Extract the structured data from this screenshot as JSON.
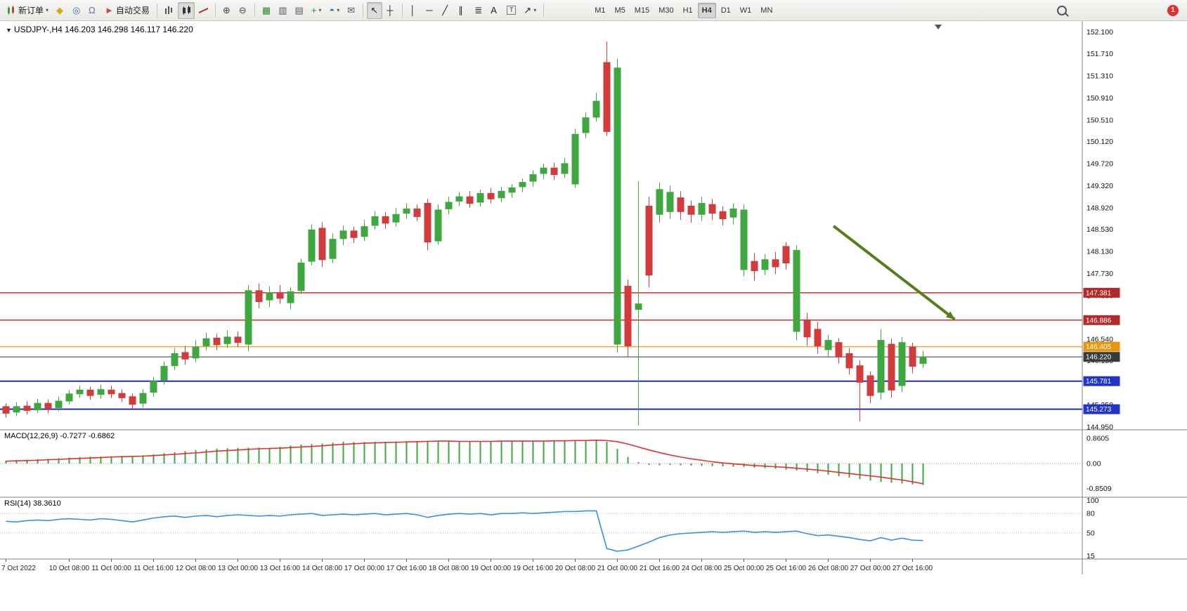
{
  "toolbar": {
    "notification_count": "1",
    "items": [
      {
        "name": "new-order-button",
        "icon": "candles",
        "label": "新订单",
        "caret": true
      },
      {
        "name": "metaeditor-button",
        "glyph": "◆",
        "color": "#D9A714"
      },
      {
        "name": "market-watch-button",
        "glyph": "◎",
        "color": "#3A6EA5"
      },
      {
        "name": "alerts-button",
        "glyph": "Ω",
        "color": "#5577AA"
      },
      {
        "name": "autotrading-button",
        "glyph": "►",
        "color": "#C84B4B",
        "label": "自动交易"
      },
      {
        "type": "sep"
      },
      {
        "name": "bar-chart-button",
        "icon": "bars"
      },
      {
        "name": "candle-chart-button",
        "icon": "candles2",
        "active": true
      },
      {
        "name": "line-chart-button",
        "icon": "linechart"
      },
      {
        "type": "sep"
      },
      {
        "name": "zoom-in-button",
        "glyph": "⊕",
        "color": "#444"
      },
      {
        "name": "zoom-out-button",
        "glyph": "⊖",
        "color": "#444"
      },
      {
        "type": "sep"
      },
      {
        "name": "tile-windows-button",
        "glyph": "▦",
        "color": "#2E8B2E"
      },
      {
        "name": "arrange-windows-button",
        "glyph": "▥",
        "color": "#556"
      },
      {
        "name": "cascade-windows-button",
        "glyph": "▤",
        "color": "#556"
      },
      {
        "name": "new-chart-button",
        "glyph": "+",
        "color": "#2E8B2E",
        "caret": true
      },
      {
        "name": "profiles-button",
        "glyph": "◓",
        "color": "#3A6EA5",
        "caret": true
      },
      {
        "name": "data-window-button",
        "glyph": "✉",
        "color": "#556"
      },
      {
        "type": "sep"
      },
      {
        "name": "cursor-button",
        "glyph": "↖",
        "color": "#222",
        "active": true
      },
      {
        "name": "crosshair-button",
        "glyph": "┼",
        "color": "#222"
      },
      {
        "type": "sep"
      },
      {
        "name": "vertical-line-button",
        "glyph": "│",
        "color": "#222"
      },
      {
        "name": "horizontal-line-button",
        "glyph": "─",
        "color": "#222"
      },
      {
        "name": "trendline-button",
        "glyph": "╱",
        "color": "#222"
      },
      {
        "name": "channel-button",
        "glyph": "∥",
        "color": "#222"
      },
      {
        "name": "fibonacci-button",
        "glyph": "≣",
        "color": "#222"
      },
      {
        "name": "text-button",
        "glyph": "A",
        "color": "#222"
      },
      {
        "name": "text-label-button",
        "icon": "boxT"
      },
      {
        "name": "shapes-button",
        "glyph": "↗",
        "color": "#222",
        "caret": true
      },
      {
        "type": "sep"
      }
    ],
    "timeframes": [
      "M1",
      "M5",
      "M15",
      "M30",
      "H1",
      "H4",
      "D1",
      "W1",
      "MN"
    ],
    "active_timeframe": "H4"
  },
  "chart": {
    "one_click_marker": "▼",
    "shift_marker": "▼"
  },
  "chart_data": [
    {
      "id": "price",
      "type": "candlestick",
      "symbol": "USDJPY-",
      "timeframe": "H4",
      "title": "USDJPY-,H4 146.203 146.298 146.117 146.220",
      "open": "146.203",
      "high": "146.298",
      "low": "146.117",
      "close": "146.220",
      "colors": {
        "up": "#3FA73F",
        "down": "#D23B3B"
      },
      "y_axis": {
        "price_top": 152.3,
        "price_bottom": 144.9,
        "labels": [
          "152.100",
          "151.710",
          "151.310",
          "150.910",
          "150.510",
          "150.120",
          "149.720",
          "149.320",
          "148.920",
          "148.530",
          "148.130",
          "147.730",
          "147.330",
          "146.930",
          "146.540",
          "146.150",
          "145.750",
          "145.350",
          "144.950"
        ]
      },
      "x_labels": [
        [
          0,
          "7 Oct 2022"
        ],
        [
          6,
          "10 Oct 08:00"
        ],
        [
          10,
          "11 Oct 00:00"
        ],
        [
          14,
          "11 Oct 16:00"
        ],
        [
          18,
          "12 Oct 08:00"
        ],
        [
          22,
          "13 Oct 00:00"
        ],
        [
          26,
          "13 Oct 16:00"
        ],
        [
          30,
          "14 Oct 08:00"
        ],
        [
          34,
          "17 Oct 00:00"
        ],
        [
          38,
          "17 Oct 16:00"
        ],
        [
          42,
          "18 Oct 08:00"
        ],
        [
          46,
          "19 Oct 00:00"
        ],
        [
          50,
          "19 Oct 16:00"
        ],
        [
          54,
          "20 Oct 08:00"
        ],
        [
          58,
          "21 Oct 00:00"
        ],
        [
          62,
          "21 Oct 16:00"
        ],
        [
          66,
          "24 Oct 08:00"
        ],
        [
          70,
          "25 Oct 00:00"
        ],
        [
          74,
          "25 Oct 16:00"
        ],
        [
          78,
          "26 Oct 08:00"
        ],
        [
          82,
          "27 Oct 00:00"
        ],
        [
          86,
          "27 Oct 16:00"
        ]
      ],
      "hlines": [
        {
          "price": 147.381,
          "color": "#CC2E2E",
          "width": 1.5,
          "label": "147.381",
          "badge": "#B22A2A"
        },
        {
          "price": 146.886,
          "color": "#CC2E2E",
          "width": 1.5,
          "label": "146.886",
          "badge": "#B22A2A"
        },
        {
          "price": 146.405,
          "color": "#F2A73B",
          "width": 1.5,
          "label": "146.405",
          "badge": "#E8960F"
        },
        {
          "price": 146.22,
          "color": "#4D4D4D",
          "width": 1.2,
          "label": "146.220",
          "badge": "#3A3A3A"
        },
        {
          "price": 145.781,
          "color": "#2929C8",
          "width": 2,
          "label": "145.781",
          "badge": "#2233CC"
        },
        {
          "price": 145.273,
          "color": "#2929C8",
          "width": 2,
          "label": "145.273",
          "badge": "#2233CC"
        }
      ],
      "candles": [
        [
          145.32,
          145.38,
          145.12,
          145.2
        ],
        [
          145.22,
          145.4,
          145.15,
          145.32
        ],
        [
          145.33,
          145.42,
          145.18,
          145.25
        ],
        [
          145.26,
          145.46,
          145.2,
          145.38
        ],
        [
          145.38,
          145.45,
          145.2,
          145.28
        ],
        [
          145.3,
          145.5,
          145.24,
          145.42
        ],
        [
          145.42,
          145.62,
          145.36,
          145.55
        ],
        [
          145.55,
          145.7,
          145.48,
          145.62
        ],
        [
          145.62,
          145.68,
          145.44,
          145.52
        ],
        [
          145.54,
          145.72,
          145.46,
          145.63
        ],
        [
          145.62,
          145.7,
          145.47,
          145.55
        ],
        [
          145.56,
          145.63,
          145.4,
          145.48
        ],
        [
          145.5,
          145.56,
          145.28,
          145.36
        ],
        [
          145.38,
          145.63,
          145.3,
          145.56
        ],
        [
          145.58,
          145.86,
          145.5,
          145.78
        ],
        [
          145.8,
          146.14,
          145.72,
          146.05
        ],
        [
          146.06,
          146.38,
          145.98,
          146.28
        ],
        [
          146.3,
          146.42,
          146.08,
          146.18
        ],
        [
          146.2,
          146.52,
          146.12,
          146.4
        ],
        [
          146.42,
          146.66,
          146.34,
          146.55
        ],
        [
          146.56,
          146.64,
          146.34,
          146.44
        ],
        [
          146.46,
          146.7,
          146.38,
          146.58
        ],
        [
          146.58,
          146.68,
          146.4,
          146.48
        ],
        [
          146.45,
          147.52,
          146.32,
          147.42
        ],
        [
          147.42,
          147.55,
          147.1,
          147.22
        ],
        [
          147.25,
          147.5,
          147.12,
          147.38
        ],
        [
          147.38,
          147.52,
          147.18,
          147.28
        ],
        [
          147.2,
          147.48,
          147.08,
          147.4
        ],
        [
          147.42,
          148.0,
          147.35,
          147.92
        ],
        [
          147.95,
          148.62,
          147.88,
          148.52
        ],
        [
          148.55,
          148.66,
          147.85,
          147.98
        ],
        [
          148.0,
          148.45,
          147.92,
          148.35
        ],
        [
          148.36,
          148.6,
          148.24,
          148.5
        ],
        [
          148.5,
          148.58,
          148.28,
          148.38
        ],
        [
          148.4,
          148.7,
          148.32,
          148.58
        ],
        [
          148.6,
          148.86,
          148.52,
          148.76
        ],
        [
          148.76,
          148.84,
          148.54,
          148.64
        ],
        [
          148.66,
          148.92,
          148.58,
          148.8
        ],
        [
          148.82,
          149.0,
          148.72,
          148.9
        ],
        [
          148.9,
          148.98,
          148.68,
          148.76
        ],
        [
          149.0,
          149.08,
          148.15,
          148.3
        ],
        [
          148.32,
          148.98,
          148.25,
          148.88
        ],
        [
          148.9,
          149.12,
          148.8,
          149.02
        ],
        [
          149.04,
          149.2,
          148.95,
          149.12
        ],
        [
          149.12,
          149.22,
          148.92,
          149.0
        ],
        [
          149.02,
          149.25,
          148.94,
          149.18
        ],
        [
          149.18,
          149.28,
          149.0,
          149.08
        ],
        [
          149.1,
          149.3,
          149.02,
          149.22
        ],
        [
          149.2,
          149.35,
          149.1,
          149.28
        ],
        [
          149.3,
          149.45,
          149.2,
          149.38
        ],
        [
          149.4,
          149.6,
          149.3,
          149.52
        ],
        [
          149.54,
          149.72,
          149.44,
          149.64
        ],
        [
          149.64,
          149.74,
          149.42,
          149.52
        ],
        [
          149.54,
          149.82,
          149.46,
          149.72
        ],
        [
          149.35,
          150.35,
          149.28,
          150.25
        ],
        [
          150.28,
          150.65,
          150.18,
          150.55
        ],
        [
          150.56,
          151.0,
          150.48,
          150.85
        ],
        [
          151.55,
          151.93,
          150.22,
          150.3
        ],
        [
          146.45,
          151.62,
          146.3,
          151.45
        ],
        [
          147.5,
          147.62,
          146.22,
          146.42
        ],
        [
          147.08,
          149.4,
          144.98,
          147.18
        ],
        [
          148.95,
          149.12,
          147.48,
          147.7
        ],
        [
          148.8,
          149.38,
          148.65,
          149.25
        ],
        [
          148.85,
          149.32,
          148.72,
          149.2
        ],
        [
          149.1,
          149.22,
          148.7,
          148.85
        ],
        [
          148.95,
          149.05,
          148.65,
          148.8
        ],
        [
          148.8,
          149.12,
          148.68,
          149.0
        ],
        [
          148.98,
          149.08,
          148.7,
          148.82
        ],
        [
          148.85,
          148.95,
          148.6,
          148.72
        ],
        [
          148.75,
          149.0,
          148.62,
          148.9
        ],
        [
          147.8,
          148.98,
          147.68,
          148.88
        ],
        [
          147.95,
          148.1,
          147.6,
          147.78
        ],
        [
          147.8,
          148.08,
          147.7,
          147.98
        ],
        [
          147.98,
          148.12,
          147.72,
          147.85
        ],
        [
          148.22,
          148.3,
          147.8,
          147.92
        ],
        [
          146.68,
          148.24,
          146.52,
          148.15
        ],
        [
          146.88,
          147.02,
          146.42,
          146.58
        ],
        [
          146.72,
          146.85,
          146.28,
          146.42
        ],
        [
          146.35,
          146.62,
          146.22,
          146.52
        ],
        [
          146.48,
          146.56,
          146.1,
          146.22
        ],
        [
          146.28,
          146.38,
          145.9,
          146.02
        ],
        [
          146.06,
          146.16,
          145.05,
          145.76
        ],
        [
          145.88,
          145.96,
          145.38,
          145.52
        ],
        [
          145.58,
          146.72,
          145.45,
          146.52
        ],
        [
          146.45,
          146.55,
          145.48,
          145.62
        ],
        [
          145.7,
          146.58,
          145.58,
          146.48
        ],
        [
          146.4,
          146.48,
          145.92,
          146.05
        ],
        [
          146.1,
          146.33,
          146.02,
          146.22
        ]
      ],
      "arrow": {
        "from": {
          "i": 78.5,
          "p": 148.59
        },
        "to": {
          "i": 90,
          "p": 146.9
        },
        "color": "#567D1C",
        "width": 4
      }
    },
    {
      "id": "macd",
      "type": "bar",
      "name": "MACD(12,26,9)",
      "title": "MACD(12,26,9) -0.7277 -0.6862",
      "value_main": "-0.7277",
      "value_signal": "-0.6862",
      "colors": {
        "histogram": "#3FA73F",
        "signal": "#E03131"
      },
      "y_labels": [
        [
          "0.8605",
          0.8605
        ],
        [
          "0.00",
          0
        ],
        [
          "-0.8509",
          -0.8509
        ]
      ],
      "histogram": [
        0.1,
        0.12,
        0.13,
        0.15,
        0.16,
        0.18,
        0.2,
        0.22,
        0.23,
        0.24,
        0.25,
        0.26,
        0.26,
        0.28,
        0.31,
        0.35,
        0.39,
        0.42,
        0.45,
        0.48,
        0.5,
        0.52,
        0.53,
        0.54,
        0.54,
        0.53,
        0.57,
        0.61,
        0.64,
        0.66,
        0.68,
        0.71,
        0.74,
        0.73,
        0.73,
        0.74,
        0.74,
        0.75,
        0.76,
        0.76,
        0.77,
        0.78,
        0.74,
        0.74,
        0.75,
        0.76,
        0.76,
        0.76,
        0.75,
        0.76,
        0.77,
        0.78,
        0.78,
        0.79,
        0.79,
        0.8,
        0.81,
        0.74,
        0.5,
        0.22,
        0.05,
        -0.05,
        -0.06,
        -0.05,
        -0.06,
        -0.07,
        -0.08,
        -0.09,
        -0.1,
        -0.11,
        -0.12,
        -0.14,
        -0.16,
        -0.18,
        -0.21,
        -0.24,
        -0.28,
        -0.33,
        -0.38,
        -0.43,
        -0.48,
        -0.53,
        -0.58,
        -0.62,
        -0.65,
        -0.68,
        -0.71,
        -0.7277
      ],
      "signal": [
        0.08,
        0.09,
        0.1,
        0.11,
        0.13,
        0.14,
        0.16,
        0.17,
        0.19,
        0.2,
        0.22,
        0.23,
        0.24,
        0.25,
        0.27,
        0.29,
        0.31,
        0.34,
        0.36,
        0.39,
        0.42,
        0.44,
        0.46,
        0.48,
        0.5,
        0.51,
        0.52,
        0.54,
        0.56,
        0.58,
        0.6,
        0.63,
        0.65,
        0.67,
        0.69,
        0.7,
        0.71,
        0.72,
        0.73,
        0.74,
        0.75,
        0.76,
        0.76,
        0.75,
        0.75,
        0.75,
        0.75,
        0.76,
        0.76,
        0.76,
        0.76,
        0.76,
        0.77,
        0.77,
        0.78,
        0.78,
        0.79,
        0.78,
        0.74,
        0.66,
        0.56,
        0.46,
        0.37,
        0.29,
        0.22,
        0.16,
        0.11,
        0.06,
        0.02,
        -0.01,
        -0.04,
        -0.07,
        -0.09,
        -0.11,
        -0.13,
        -0.16,
        -0.19,
        -0.22,
        -0.26,
        -0.3,
        -0.34,
        -0.38,
        -0.42,
        -0.46,
        -0.51,
        -0.56,
        -0.62,
        -0.6862
      ]
    },
    {
      "id": "rsi",
      "type": "line",
      "name": "RSI(14)",
      "title": "RSI(14) 38.3610",
      "value": "38.3610",
      "color": "#3E8EDE",
      "levels": [
        80,
        50
      ],
      "y_labels": [
        [
          "100",
          100
        ],
        [
          "80",
          80
        ],
        [
          "50",
          50
        ],
        [
          "15",
          15
        ]
      ],
      "values": [
        68,
        67,
        69,
        70,
        69,
        71,
        72,
        71,
        70,
        72,
        71,
        69,
        67,
        70,
        73,
        75,
        76,
        74,
        76,
        77,
        75,
        77,
        78,
        77,
        76,
        77,
        76,
        78,
        79,
        80,
        77,
        78,
        79,
        78,
        79,
        80,
        78,
        79,
        80,
        78,
        74,
        77,
        79,
        80,
        79,
        80,
        78,
        80,
        80,
        81,
        80,
        81,
        82,
        83,
        83,
        84,
        84,
        26,
        22,
        24,
        30,
        36,
        43,
        47,
        49,
        50,
        51,
        52,
        51,
        52,
        53,
        51,
        52,
        51,
        52,
        53,
        49,
        46,
        47,
        45,
        43,
        40,
        38,
        43,
        39,
        42,
        39,
        38.36
      ]
    }
  ]
}
